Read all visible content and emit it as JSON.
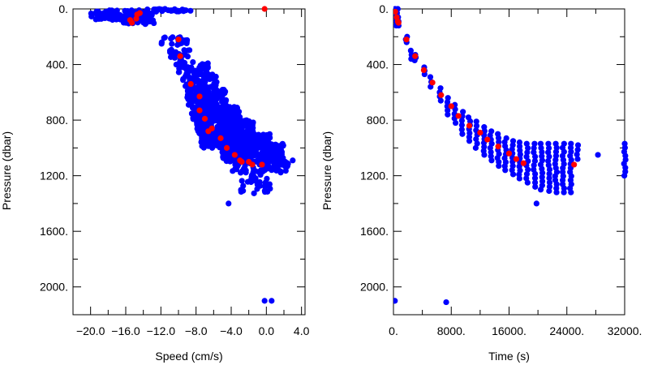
{
  "chart_data": [
    {
      "type": "scatter",
      "xlabel": "Speed (cm/s)",
      "ylabel": "Pressure (dbar)",
      "xlim": [
        -22,
        4.4
      ],
      "ylim": [
        2200,
        0
      ],
      "x_ticks": [
        -20,
        -16,
        -12,
        -8,
        -4,
        0,
        4
      ],
      "x_tick_labels": [
        "−20.0",
        "−16.0",
        "−12.0",
        "−8.0",
        "−4.0",
        "0.0",
        "4.0"
      ],
      "y_ticks": [
        0,
        400,
        800,
        1200,
        1600,
        2000
      ],
      "y_tick_labels": [
        "0.",
        "400.",
        "800.",
        "1200.",
        "1600.",
        "2000."
      ],
      "series": [
        {
          "color": "#0000ff",
          "clusters": [
            {
              "x": [
                -20,
                -13
              ],
              "y": [
                10,
                80
              ],
              "n": 90
            },
            {
              "x": [
                -17,
                -12.5
              ],
              "y": [
                0,
                110
              ],
              "n": 40
            },
            {
              "x": [
                -13,
                -8.5
              ],
              "y": [
                0,
                20
              ],
              "n": 30
            },
            {
              "x": [
                -12,
                -9
              ],
              "y": [
                200,
                260
              ],
              "n": 20
            },
            {
              "x": [
                -11,
                -8.5
              ],
              "y": [
                290,
                370
              ],
              "n": 20
            },
            {
              "x": [
                -10.5,
                -6.5
              ],
              "y": [
                380,
                470
              ],
              "n": 35
            },
            {
              "x": [
                -9.5,
                -5.5
              ],
              "y": [
                470,
                580
              ],
              "n": 60
            },
            {
              "x": [
                -9,
                -4.5
              ],
              "y": [
                580,
                700
              ],
              "n": 110
            },
            {
              "x": [
                -8.5,
                -3
              ],
              "y": [
                700,
                800
              ],
              "n": 150
            },
            {
              "x": [
                -8,
                -1.5
              ],
              "y": [
                800,
                900
              ],
              "n": 180
            },
            {
              "x": [
                -7.5,
                0.5
              ],
              "y": [
                900,
                1000
              ],
              "n": 220
            },
            {
              "x": [
                -5,
                2
              ],
              "y": [
                970,
                1100
              ],
              "n": 220
            },
            {
              "x": [
                -4,
                2.5
              ],
              "y": [
                1080,
                1180
              ],
              "n": 80
            },
            {
              "x": [
                -3,
                0.5
              ],
              "y": [
                1180,
                1330
              ],
              "n": 30
            }
          ],
          "points": [
            {
              "x": -4.3,
              "y": 1400
            },
            {
              "x": -0.2,
              "y": 2100
            },
            {
              "x": 0.6,
              "y": 2100
            },
            {
              "x": 3.0,
              "y": 1090
            },
            {
              "x": -5,
              "y": 1030
            },
            {
              "x": -6.5,
              "y": 940
            }
          ]
        },
        {
          "color": "#ff0000",
          "points": [
            {
              "x": -14.7,
              "y": 40
            },
            {
              "x": -15.5,
              "y": 80
            },
            {
              "x": -14.8,
              "y": 70
            },
            {
              "x": -15.3,
              "y": 100
            },
            {
              "x": -14.4,
              "y": 30
            },
            {
              "x": -0.2,
              "y": 0
            },
            {
              "x": -10,
              "y": 220
            },
            {
              "x": -9.8,
              "y": 340
            },
            {
              "x": -8.6,
              "y": 540
            },
            {
              "x": -7.6,
              "y": 630
            },
            {
              "x": -7.6,
              "y": 730
            },
            {
              "x": -7.0,
              "y": 790
            },
            {
              "x": -6.2,
              "y": 860
            },
            {
              "x": -5.2,
              "y": 930
            },
            {
              "x": -4.5,
              "y": 1000
            },
            {
              "x": -3.6,
              "y": 1050
            },
            {
              "x": -3.0,
              "y": 1090
            },
            {
              "x": -2.0,
              "y": 1100
            },
            {
              "x": -1.6,
              "y": 1120
            },
            {
              "x": -0.5,
              "y": 1120
            },
            {
              "x": -2.8,
              "y": 1100
            },
            {
              "x": -6.6,
              "y": 880
            }
          ]
        }
      ]
    },
    {
      "type": "scatter",
      "xlabel": "Time (s)",
      "ylabel": "Pressure (dbar)",
      "xlim": [
        0,
        32000
      ],
      "ylim": [
        2200,
        0
      ],
      "x_ticks": [
        0,
        8000,
        16000,
        24000,
        32000
      ],
      "x_tick_labels": [
        "0.",
        "8000.",
        "16000.",
        "24000.",
        "32000."
      ],
      "y_ticks": [
        0,
        400,
        800,
        1200,
        1600,
        2000
      ],
      "y_tick_labels": [
        "0.",
        "400.",
        "800.",
        "1200.",
        "1600.",
        "2000."
      ],
      "series": [
        {
          "color": "#0000ff",
          "columns": [
            {
              "x": 300,
              "y": [
                0,
                120
              ]
            },
            {
              "x": 600,
              "y": [
                0,
                120
              ]
            },
            {
              "x": 1800,
              "y": [
                200,
                240
              ]
            },
            {
              "x": 2500,
              "y": [
                300,
                360
              ]
            },
            {
              "x": 3000,
              "y": [
                330,
                370
              ]
            },
            {
              "x": 4200,
              "y": [
                420,
                470
              ]
            },
            {
              "x": 5200,
              "y": [
                490,
                560
              ]
            },
            {
              "x": 6500,
              "y": [
                570,
                660
              ]
            },
            {
              "x": 7500,
              "y": [
                640,
                760
              ]
            },
            {
              "x": 8500,
              "y": [
                690,
                820
              ]
            },
            {
              "x": 9500,
              "y": [
                740,
                900
              ]
            },
            {
              "x": 10500,
              "y": [
                780,
                950
              ]
            },
            {
              "x": 11500,
              "y": [
                810,
                1000
              ]
            },
            {
              "x": 12500,
              "y": [
                850,
                1050
              ]
            },
            {
              "x": 13500,
              "y": [
                880,
                1090
              ]
            },
            {
              "x": 14500,
              "y": [
                900,
                1130
              ]
            },
            {
              "x": 15500,
              "y": [
                930,
                1160
              ]
            },
            {
              "x": 16500,
              "y": [
                950,
                1190
              ]
            },
            {
              "x": 17500,
              "y": [
                960,
                1220
              ]
            },
            {
              "x": 18500,
              "y": [
                970,
                1250
              ]
            },
            {
              "x": 19500,
              "y": [
                970,
                1280
              ]
            },
            {
              "x": 20500,
              "y": [
                970,
                1300
              ]
            },
            {
              "x": 21500,
              "y": [
                970,
                1310
              ]
            },
            {
              "x": 22500,
              "y": [
                970,
                1320
              ]
            },
            {
              "x": 23500,
              "y": [
                970,
                1320
              ]
            },
            {
              "x": 24500,
              "y": [
                970,
                1320
              ]
            },
            {
              "x": 25500,
              "y": [
                980,
                1080
              ]
            },
            {
              "x": 32000,
              "y": [
                970,
                1200
              ]
            }
          ],
          "points": [
            {
              "x": 200,
              "y": 2100
            },
            {
              "x": 7300,
              "y": 2110
            },
            {
              "x": 19800,
              "y": 1400
            },
            {
              "x": 28300,
              "y": 1050
            }
          ]
        },
        {
          "color": "#ff0000",
          "points": [
            {
              "x": 250,
              "y": 20
            },
            {
              "x": 450,
              "y": 60
            },
            {
              "x": 600,
              "y": 90
            },
            {
              "x": 700,
              "y": 100
            },
            {
              "x": 1800,
              "y": 220
            },
            {
              "x": 3000,
              "y": 340
            },
            {
              "x": 4200,
              "y": 440
            },
            {
              "x": 5400,
              "y": 530
            },
            {
              "x": 6600,
              "y": 620
            },
            {
              "x": 8000,
              "y": 700
            },
            {
              "x": 9000,
              "y": 770
            },
            {
              "x": 10500,
              "y": 840
            },
            {
              "x": 12000,
              "y": 890
            },
            {
              "x": 13000,
              "y": 940
            },
            {
              "x": 14500,
              "y": 990
            },
            {
              "x": 16000,
              "y": 1040
            },
            {
              "x": 17000,
              "y": 1080
            },
            {
              "x": 18000,
              "y": 1110
            },
            {
              "x": 25000,
              "y": 1120
            }
          ]
        }
      ]
    }
  ]
}
